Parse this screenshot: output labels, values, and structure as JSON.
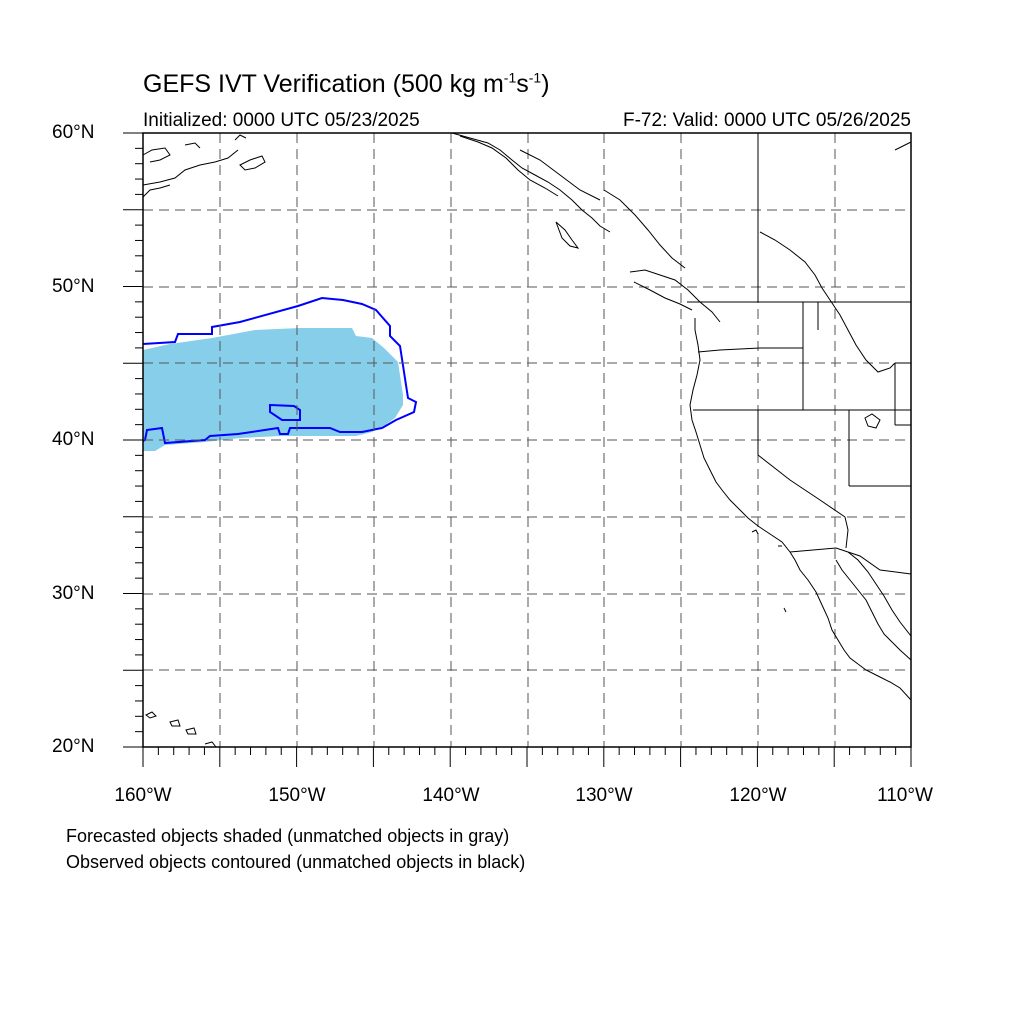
{
  "title": {
    "main": "GEFS IVT Verification (500 kg m",
    "exp1": "-1",
    "mid": "s",
    "exp2": "-1",
    "close": ")"
  },
  "initialized": "Initialized: 0000 UTC 05/23/2025",
  "valid": "F-72: Valid: 0000 UTC 05/26/2025",
  "y_ticks": [
    "60°N",
    "50°N",
    "40°N",
    "30°N",
    "20°N"
  ],
  "x_ticks": [
    "160°W",
    "150°W",
    "140°W",
    "130°W",
    "120°W",
    "110°W"
  ],
  "captions": [
    "Forecasted objects shaded (unmatched objects in gray)",
    "Observed objects contoured (unmatched objects in black)"
  ],
  "colors": {
    "forecast_fill": "#87ceeb",
    "observed_contour": "#0000ff",
    "coastline": "#000000",
    "grid": "#555555"
  },
  "map_extent": {
    "lon_min": -160,
    "lon_max": -110,
    "lat_min": 20,
    "lat_max": 60
  }
}
